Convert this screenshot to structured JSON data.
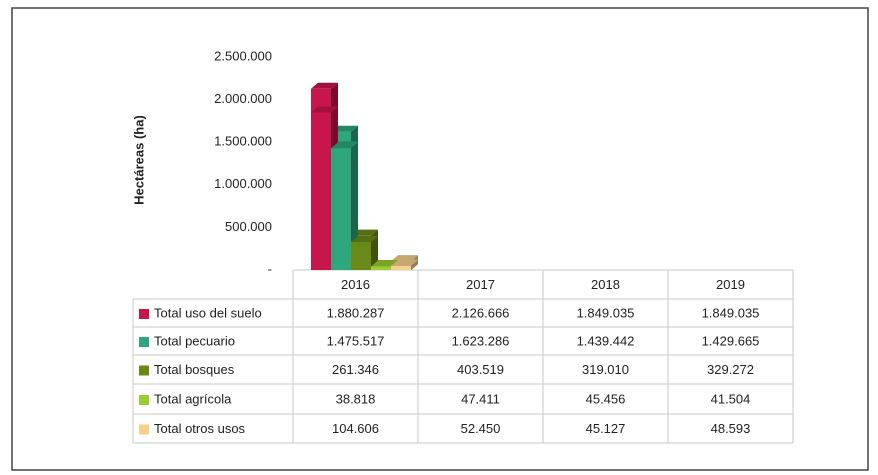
{
  "chart_data": {
    "type": "bar3d",
    "y_label": "Hectáreas (ha)",
    "categories": [
      "2016",
      "2017",
      "2018",
      "2019"
    ],
    "ylim": [
      0,
      2500000
    ],
    "yticks": [
      {
        "value": 0,
        "label": "-"
      },
      {
        "value": 500000,
        "label": "500.000"
      },
      {
        "value": 1000000,
        "label": "1.000.000"
      },
      {
        "value": 1500000,
        "label": "1.500.000"
      },
      {
        "value": 2000000,
        "label": "2.000.000"
      },
      {
        "value": 2500000,
        "label": "2.500.000"
      }
    ],
    "series": [
      {
        "name": "Total uso del suelo",
        "color": "#c8154c",
        "values": [
          1880287,
          2126666,
          1849035,
          1849035
        ],
        "value_labels": [
          "1.880.287",
          "2.126.666",
          "1.849.035",
          "1.849.035"
        ]
      },
      {
        "name": "Total pecuario",
        "color": "#2ea77c",
        "values": [
          1475517,
          1623286,
          1439442,
          1429665
        ],
        "value_labels": [
          "1.475.517",
          "1.623.286",
          "1.439.442",
          "1.429.665"
        ]
      },
      {
        "name": "Total bosques",
        "color": "#6a8a18",
        "values": [
          261346,
          403519,
          319010,
          329272
        ],
        "value_labels": [
          "261.346",
          "403.519",
          "319.010",
          "329.272"
        ]
      },
      {
        "name": "Total agrícola",
        "color": "#9acd2e",
        "values": [
          38818,
          47411,
          45456,
          41504
        ],
        "value_labels": [
          "38.818",
          "47.411",
          "45.456",
          "41.504"
        ]
      },
      {
        "name": "Total otros usos",
        "color": "#f6d18c",
        "values": [
          104606,
          52450,
          45127,
          48593
        ],
        "value_labels": [
          "104.606",
          "52.450",
          "45.127",
          "48.593"
        ]
      }
    ]
  }
}
